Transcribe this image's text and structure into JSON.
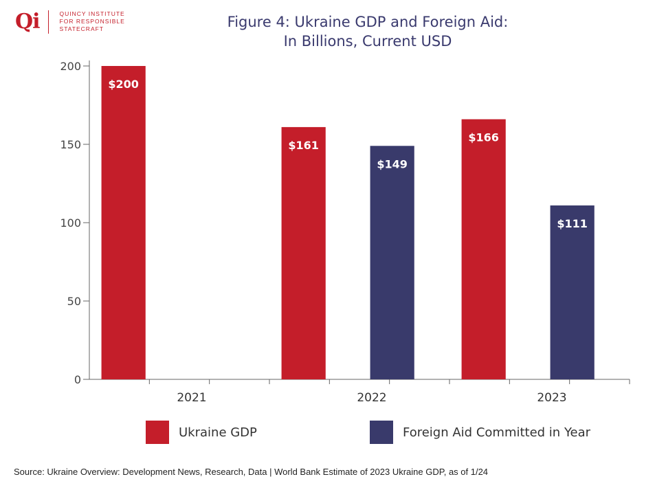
{
  "logo": {
    "mark": "Qi",
    "lines": [
      "QUINCY INSTITUTE",
      "FOR RESPONSIBLE",
      "STATECRAFT"
    ]
  },
  "chart_data": {
    "type": "bar",
    "title": "Figure 4: Ukraine GDP and Foreign Aid:",
    "subtitle": "In Billions, Current USD",
    "categories": [
      "2021",
      "2022",
      "2023"
    ],
    "series": [
      {
        "name": "Ukraine GDP",
        "color": "#c41e2a",
        "values": [
          200,
          161,
          166
        ],
        "labels": [
          "$200",
          "$161",
          "$166"
        ]
      },
      {
        "name": "Foreign Aid Committed in Year",
        "color": "#393a6b",
        "values": [
          null,
          149,
          111
        ],
        "labels": [
          null,
          "$149",
          "$111"
        ]
      }
    ],
    "yticks": [
      0,
      50,
      100,
      150,
      200
    ],
    "ylim": [
      0,
      200
    ],
    "xlabel": "",
    "ylabel": "",
    "legend": "bottom"
  },
  "source": "Source: Ukraine Overview: Development News, Research, Data | World Bank Estimate of 2023 Ukraine GDP, as of 1/24"
}
